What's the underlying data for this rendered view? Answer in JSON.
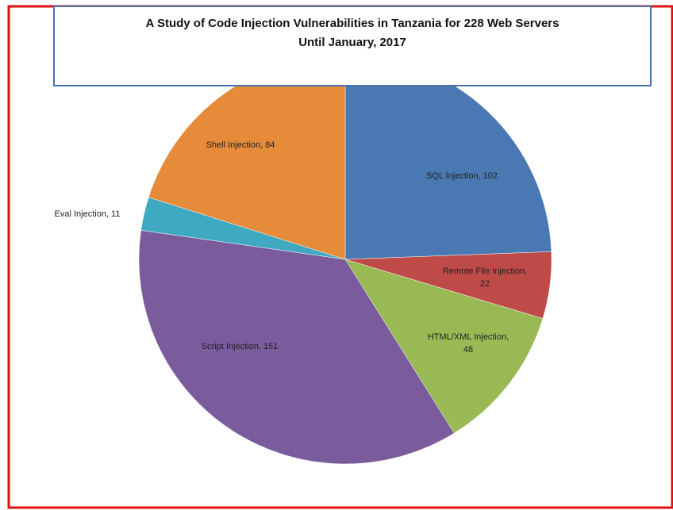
{
  "chart_data": {
    "type": "pie",
    "title": "A Study of Code Injection Vulnerabilities in Tanzania for 228 Web Servers Until January, 2017",
    "categories": [
      "SQL Injection, 102",
      "Remote File Injection, 22",
      "HTML/XML Injection, 48",
      "Script Injection, 151",
      "Eval Injection, 11",
      "Shell Injection, 84"
    ],
    "values": [
      102,
      22,
      48,
      151,
      11,
      84
    ],
    "colors": [
      "#4a78b2",
      "#be4b48",
      "#98b954",
      "#7a5b9c",
      "#3fa9c2",
      "#e58b3a"
    ]
  }
}
